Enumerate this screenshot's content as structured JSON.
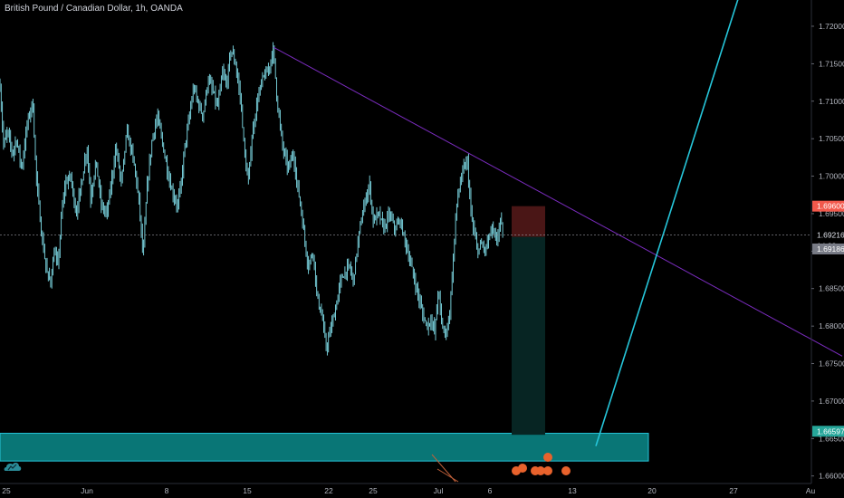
{
  "header": {
    "title": "British Pound / Canadian Dollar, 1h, OANDA"
  },
  "colors": {
    "background": "#000000",
    "candle": "#80deea",
    "trendline_purple": "#7b2cbf",
    "trendline_cyan": "#26c6da",
    "zone_fill": "#0b8b8b",
    "zone_border": "#26c6da",
    "stop_zone": "#4a1616",
    "target_zone": "#072523",
    "axis_text": "#b2b5be",
    "crosshair": "#9598a1"
  },
  "chart_data": {
    "type": "candlestick",
    "title": "British Pound / Canadian Dollar, 1h, OANDA",
    "x_ticks": [
      "25",
      "Jun",
      "8",
      "15",
      "22",
      "25",
      "Jul",
      "6",
      "13",
      "20",
      "27",
      "Au"
    ],
    "y_ticks": [
      "1.72000",
      "1.71500",
      "1.71000",
      "1.70500",
      "1.70000",
      "1.69500",
      "1.69000",
      "1.68500",
      "1.68000",
      "1.67500",
      "1.67000",
      "1.66500",
      "1.66000"
    ],
    "ylim": [
      1.659,
      1.7235
    ],
    "price_labels": {
      "stop": "1.69600",
      "current": "1.69216",
      "countdown": "14:32",
      "entry": "1.69186",
      "target": "1.66597"
    },
    "path_points": [
      [
        0,
        1.712
      ],
      [
        4,
        1.704
      ],
      [
        8,
        1.706
      ],
      [
        14,
        1.703
      ],
      [
        18,
        1.705
      ],
      [
        24,
        1.701
      ],
      [
        30,
        1.707
      ],
      [
        36,
        1.71
      ],
      [
        40,
        1.7
      ],
      [
        46,
        1.692
      ],
      [
        52,
        1.687
      ],
      [
        56,
        1.686
      ],
      [
        60,
        1.69
      ],
      [
        64,
        1.688
      ],
      [
        68,
        1.695
      ],
      [
        72,
        1.699
      ],
      [
        78,
        1.7
      ],
      [
        84,
        1.695
      ],
      [
        90,
        1.699
      ],
      [
        96,
        1.704
      ],
      [
        100,
        1.697
      ],
      [
        106,
        1.702
      ],
      [
        112,
        1.696
      ],
      [
        118,
        1.695
      ],
      [
        124,
        1.7
      ],
      [
        128,
        1.704
      ],
      [
        134,
        1.699
      ],
      [
        140,
        1.706
      ],
      [
        146,
        1.703
      ],
      [
        150,
        1.7
      ],
      [
        154,
        1.696
      ],
      [
        158,
        1.689
      ],
      [
        162,
        1.698
      ],
      [
        168,
        1.705
      ],
      [
        174,
        1.708
      ],
      [
        180,
        1.704
      ],
      [
        186,
        1.7
      ],
      [
        190,
        1.698
      ],
      [
        196,
        1.696
      ],
      [
        200,
        1.699
      ],
      [
        204,
        1.704
      ],
      [
        208,
        1.707
      ],
      [
        214,
        1.712
      ],
      [
        218,
        1.71
      ],
      [
        224,
        1.708
      ],
      [
        230,
        1.713
      ],
      [
        236,
        1.711
      ],
      [
        240,
        1.709
      ],
      [
        246,
        1.714
      ],
      [
        250,
        1.712
      ],
      [
        255,
        1.717
      ],
      [
        260,
        1.715
      ],
      [
        266,
        1.71
      ],
      [
        270,
        1.703
      ],
      [
        274,
        1.699
      ],
      [
        278,
        1.705
      ],
      [
        284,
        1.71
      ],
      [
        290,
        1.713
      ],
      [
        296,
        1.714
      ],
      [
        302,
        1.717
      ],
      [
        306,
        1.71
      ],
      [
        312,
        1.704
      ],
      [
        318,
        1.701
      ],
      [
        324,
        1.703
      ],
      [
        328,
        1.699
      ],
      [
        332,
        1.696
      ],
      [
        336,
        1.692
      ],
      [
        340,
        1.688
      ],
      [
        346,
        1.69
      ],
      [
        350,
        1.684
      ],
      [
        356,
        1.681
      ],
      [
        360,
        1.677
      ],
      [
        364,
        1.679
      ],
      [
        370,
        1.682
      ],
      [
        376,
        1.686
      ],
      [
        380,
        1.687
      ],
      [
        386,
        1.688
      ],
      [
        390,
        1.686
      ],
      [
        396,
        1.692
      ],
      [
        402,
        1.696
      ],
      [
        408,
        1.699
      ],
      [
        412,
        1.694
      ],
      [
        418,
        1.695
      ],
      [
        424,
        1.693
      ],
      [
        430,
        1.695
      ],
      [
        436,
        1.693
      ],
      [
        442,
        1.694
      ],
      [
        448,
        1.691
      ],
      [
        452,
        1.689
      ],
      [
        456,
        1.687
      ],
      [
        460,
        1.685
      ],
      [
        464,
        1.683
      ],
      [
        468,
        1.681
      ],
      [
        472,
        1.68
      ],
      [
        476,
        1.681
      ],
      [
        480,
        1.679
      ],
      [
        484,
        1.685
      ],
      [
        488,
        1.68
      ],
      [
        492,
        1.679
      ],
      [
        496,
        1.681
      ],
      [
        500,
        1.688
      ],
      [
        504,
        1.696
      ],
      [
        508,
        1.699
      ],
      [
        512,
        1.701
      ],
      [
        516,
        1.702
      ],
      [
        520,
        1.695
      ],
      [
        524,
        1.692
      ],
      [
        528,
        1.69
      ],
      [
        532,
        1.691
      ],
      [
        536,
        1.69
      ],
      [
        540,
        1.692
      ],
      [
        544,
        1.693
      ],
      [
        548,
        1.691
      ],
      [
        552,
        1.694
      ],
      [
        556,
        1.6925
      ]
    ],
    "trendlines": [
      {
        "name": "descending",
        "points": [
          [
            302,
            1.7172
          ],
          [
            930,
            1.676
          ]
        ]
      },
      {
        "name": "ascending",
        "points": [
          [
            658,
            1.664
          ],
          [
            816,
            1.724
          ]
        ]
      }
    ],
    "zones": [
      {
        "name": "support-zone",
        "x": [
          0,
          716
        ],
        "y": [
          1.662,
          1.6657
        ]
      },
      {
        "name": "stop-zone",
        "x": [
          565,
          602
        ],
        "y": [
          1.6919,
          1.696
        ]
      },
      {
        "name": "target-zone",
        "x": [
          565,
          602
        ],
        "y": [
          1.6655,
          1.6919
        ]
      }
    ],
    "current_price": 1.69216
  }
}
